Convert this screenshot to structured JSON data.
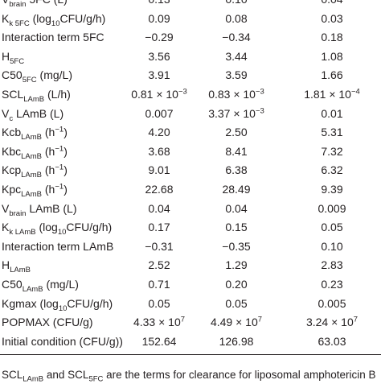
{
  "table": {
    "rows": [
      {
        "param": "V brain 5FC (L)",
        "p_main": "V",
        "p_sub": "brain",
        "p_rest": " 5FC (L)",
        "v1": "0.13",
        "v2": "0.10",
        "v3": "0.04"
      },
      {
        "param": "K k 5FC (log10CFU/g/h)",
        "p_main": "K",
        "p_sub": "k 5FC",
        "p_rest": " (log",
        "p_sub2": "10",
        "p_rest2": "CFU/g/h)",
        "v1": "0.09",
        "v2": "0.08",
        "v3": "0.03"
      },
      {
        "param": "Interaction term 5FC",
        "p_main": "Interaction term 5FC",
        "v1": "−0.29",
        "v2": "−0.34",
        "v3": "0.18"
      },
      {
        "param": "H 5FC",
        "p_main": "H",
        "p_sub": "5FC",
        "v1": "3.56",
        "v2": "3.44",
        "v3": "1.08"
      },
      {
        "param": "C50 5FC (mg/L)",
        "p_main": "C50",
        "p_sub": "5FC",
        "p_rest": " (mg/L)",
        "v1": "3.91",
        "v2": "3.59",
        "v3": "1.66"
      },
      {
        "param": "SCL LAmB (L/h)",
        "p_main": "SCL",
        "p_sub": "LAmB",
        "p_rest": " (L/h)",
        "v1": "0.81 × 10",
        "v1_sup": "−3",
        "v2": "0.83 × 10",
        "v2_sup": "−3",
        "v3": "1.81 × 10",
        "v3_sup": "−4"
      },
      {
        "param": "V c LAmB (L)",
        "p_main": "V",
        "p_sub": "c",
        "p_rest": " LAmB (L)",
        "v1": "0.007",
        "v2": "3.37 × 10",
        "v2_sup": "−3",
        "v3": "0.01"
      },
      {
        "param": "Kcb LAmB (h-1)",
        "p_main": "Kcb",
        "p_sub": "LAmB",
        "p_rest": " (h",
        "p_sup": "−1",
        "p_rest2": ")",
        "v1": "4.20",
        "v2": "2.50",
        "v3": "5.31"
      },
      {
        "param": "Kbc LAmB (h-1)",
        "p_main": "Kbc",
        "p_sub": "LAmB",
        "p_rest": " (h",
        "p_sup": "−1",
        "p_rest2": ")",
        "v1": "3.68",
        "v2": "8.41",
        "v3": "7.32"
      },
      {
        "param": "Kcp LAmB (h-1)",
        "p_main": "Kcp",
        "p_sub": "LAmB",
        "p_rest": " (h",
        "p_sup": "−1",
        "p_rest2": ")",
        "v1": "9.01",
        "v2": "6.38",
        "v3": "6.32"
      },
      {
        "param": "Kpc LAmB (h-1)",
        "p_main": "Kpc",
        "p_sub": "LAmB",
        "p_rest": " (h",
        "p_sup": "−1",
        "p_rest2": ")",
        "v1": "22.68",
        "v2": "28.49",
        "v3": "9.39"
      },
      {
        "param": "V brain LAmB (L)",
        "p_main": "V",
        "p_sub": "brain",
        "p_rest": " LAmB (L)",
        "v1": "0.04",
        "v2": "0.04",
        "v3": "0.009"
      },
      {
        "param": "K k LAmB (log10CFU/g/h)",
        "p_main": "K",
        "p_sub": "k LAmB",
        "p_rest": " (log",
        "p_sub2": "10",
        "p_rest2": "CFU/g/h)",
        "v1": "0.17",
        "v2": "0.15",
        "v3": "0.05"
      },
      {
        "param": "Interaction term LAmB",
        "p_main": "Interaction term LAmB",
        "v1": "−0.31",
        "v2": "−0.35",
        "v3": "0.10"
      },
      {
        "param": "H LAmB",
        "p_main": "H",
        "p_sub": "LAmB",
        "v1": "2.52",
        "v2": "1.29",
        "v3": "2.83"
      },
      {
        "param": "C50 LAmB (mg/L)",
        "p_main": "C50",
        "p_sub": "LAmB",
        "p_rest": " (mg/L)",
        "v1": "0.71",
        "v2": "0.20",
        "v3": "0.23"
      },
      {
        "param": "Kgmax (log10CFU/g/h)",
        "p_main": "Kgmax (log",
        "p_sub": "10",
        "p_rest": "CFU/g/h)",
        "v1": "0.05",
        "v2": "0.05",
        "v3": "0.005"
      },
      {
        "param": "POPMAX (CFU/g)",
        "p_main": "POPMAX (CFU/g)",
        "v1": "4.33 × 10",
        "v1_sup": "7",
        "v2": "4.49 × 10",
        "v2_sup": "7",
        "v3": "3.24 × 10",
        "v3_sup": "7"
      },
      {
        "param": "Initial condition (CFU/g))",
        "p_main": "Initial condition (CFU/g))",
        "v1": "152.64",
        "v2": "126.98",
        "v3": "63.03"
      }
    ]
  },
  "footnote": {
    "text_a": "SCL",
    "sub_a": "LAmB",
    "text_b": " and SCL",
    "sub_b": "5FC",
    "text_c": " are the terms for clearance for liposomal amphotericin B"
  },
  "colors": {
    "text": "#231f20",
    "background": "#ffffff"
  }
}
